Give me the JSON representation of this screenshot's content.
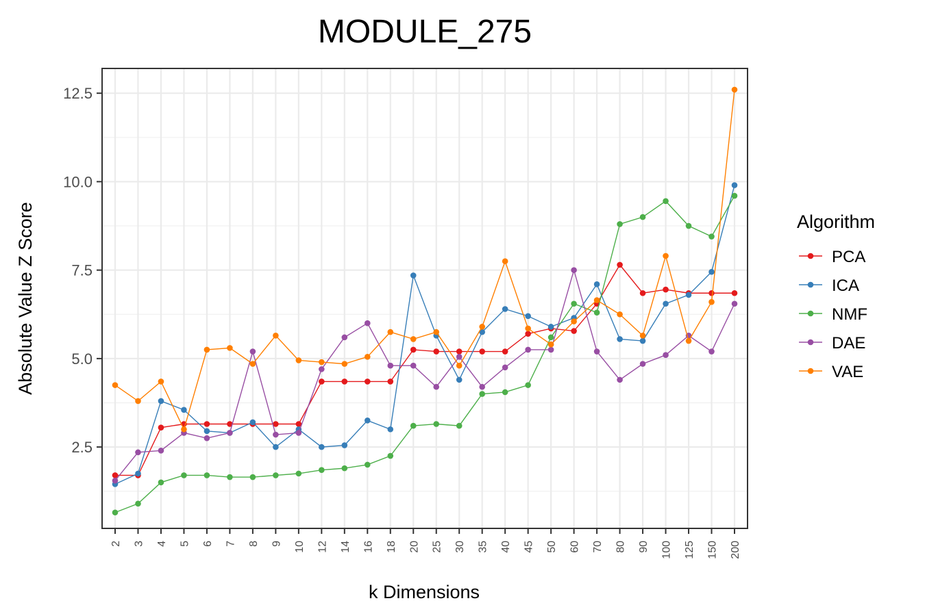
{
  "chart_data": {
    "type": "line",
    "title": "MODULE_275",
    "xlabel": "k Dimensions",
    "ylabel": "Absolute Value Z Score",
    "categories": [
      "2",
      "3",
      "4",
      "5",
      "6",
      "7",
      "8",
      "9",
      "10",
      "12",
      "14",
      "16",
      "18",
      "20",
      "25",
      "30",
      "35",
      "40",
      "45",
      "50",
      "60",
      "70",
      "80",
      "90",
      "100",
      "125",
      "150",
      "200"
    ],
    "ylim": [
      0.2,
      13.2
    ],
    "yticks": [
      2.5,
      5.0,
      7.5,
      10.0,
      12.5
    ],
    "ytick_labels": [
      "2.5",
      "5.0",
      "7.5",
      "10.0",
      "12.5"
    ],
    "grid": true,
    "legend": {
      "title": "Algorithm",
      "position": "right"
    },
    "series": [
      {
        "name": "PCA",
        "color": "#e41a1c",
        "values": [
          1.7,
          1.7,
          3.05,
          3.15,
          3.15,
          3.15,
          3.15,
          3.15,
          3.15,
          4.35,
          4.35,
          4.35,
          4.35,
          5.25,
          5.2,
          5.2,
          5.2,
          5.2,
          5.7,
          5.85,
          5.78,
          6.55,
          7.65,
          6.85,
          6.95,
          6.85,
          6.85,
          6.85
        ]
      },
      {
        "name": "ICA",
        "color": "#377eb8",
        "values": [
          1.45,
          1.75,
          3.8,
          3.55,
          2.95,
          2.9,
          3.2,
          2.5,
          3.0,
          2.5,
          2.55,
          3.25,
          3.0,
          7.35,
          5.65,
          4.4,
          5.75,
          6.4,
          6.2,
          5.9,
          6.15,
          7.1,
          5.55,
          5.5,
          6.55,
          6.8,
          7.45,
          9.9
        ]
      },
      {
        "name": "NMF",
        "color": "#4daf4a",
        "values": [
          0.65,
          0.9,
          1.5,
          1.7,
          1.7,
          1.65,
          1.65,
          1.7,
          1.75,
          1.85,
          1.9,
          2.0,
          2.25,
          3.1,
          3.15,
          3.1,
          4.0,
          4.05,
          4.25,
          5.6,
          6.55,
          6.3,
          8.8,
          9.0,
          9.45,
          8.75,
          8.45,
          9.6
        ]
      },
      {
        "name": "DAE",
        "color": "#984ea3",
        "values": [
          1.55,
          2.35,
          2.4,
          2.9,
          2.75,
          2.9,
          5.2,
          2.85,
          2.9,
          4.7,
          5.6,
          6.0,
          4.8,
          4.8,
          4.2,
          5.05,
          4.2,
          4.75,
          5.25,
          5.25,
          7.5,
          5.2,
          4.4,
          4.85,
          5.1,
          5.65,
          5.2,
          6.55
        ]
      },
      {
        "name": "VAE",
        "color": "#ff7f00",
        "values": [
          4.25,
          3.8,
          4.35,
          3.0,
          5.25,
          5.3,
          4.85,
          5.65,
          4.95,
          4.9,
          4.85,
          5.05,
          5.75,
          5.55,
          5.75,
          4.8,
          5.9,
          7.75,
          5.85,
          5.4,
          6.05,
          6.65,
          6.25,
          5.65,
          7.9,
          5.5,
          6.6,
          12.6
        ]
      }
    ]
  }
}
